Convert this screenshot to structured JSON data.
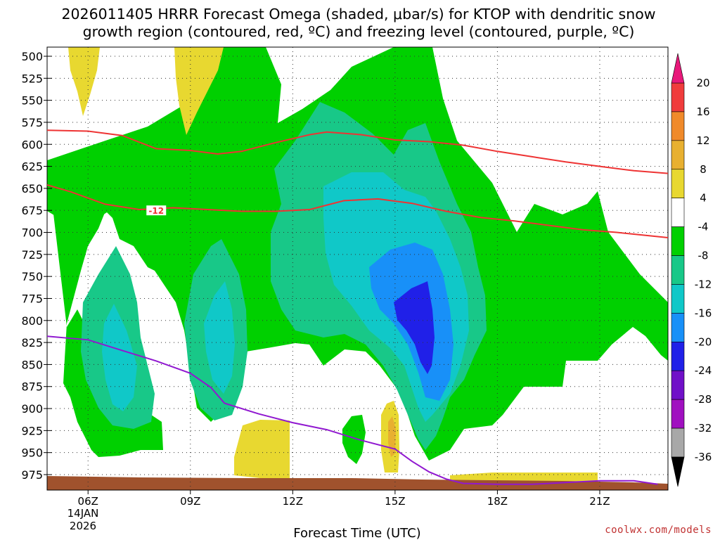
{
  "title": {
    "line1": "2026011405 HRRR Forecast Omega (shaded, μbar/s) for KTOP with dendritic snow",
    "line2": "growth region (contoured, red, ºC) and freezing level (contoured, purple, ºC)"
  },
  "credit": "coolwx.com/models",
  "chart_data": {
    "type": "filled-contour",
    "title": "2026011405 HRRR Forecast Omega (shaded, μbar/s) for KTOP with dendritic snow growth region (contoured, red, ºC) and freezing level (contoured, purple, ºC)",
    "xlabel": "Forecast Time (UTC)",
    "ylabel": "",
    "x_range_hours": [
      4.8,
      23.0
    ],
    "y_range_hpa": [
      500,
      990
    ],
    "y_inverted": true,
    "grid": true,
    "x_ticks": [
      {
        "hour": 6,
        "label": "06Z"
      },
      {
        "hour": 9,
        "label": "09Z"
      },
      {
        "hour": 12,
        "label": "12Z"
      },
      {
        "hour": 15,
        "label": "15Z"
      },
      {
        "hour": 18,
        "label": "18Z"
      },
      {
        "hour": 21,
        "label": "21Z"
      }
    ],
    "date_label": {
      "day": "14JAN",
      "year": "2026"
    },
    "y_ticks": [
      {
        "p": 500,
        "label": "500"
      },
      {
        "p": 525,
        "label": "525"
      },
      {
        "p": 550,
        "label": "550"
      },
      {
        "p": 575,
        "label": "575"
      },
      {
        "p": 600,
        "label": "600"
      },
      {
        "p": 625,
        "label": "625"
      },
      {
        "p": 650,
        "label": "650"
      },
      {
        "p": 675,
        "label": "675"
      },
      {
        "p": 700,
        "label": "700"
      },
      {
        "p": 725,
        "label": "725"
      },
      {
        "p": 750,
        "label": "750"
      },
      {
        "p": 775,
        "label": "775"
      },
      {
        "p": 800,
        "label": "800"
      },
      {
        "p": 825,
        "label": "825"
      },
      {
        "p": 850,
        "label": "850"
      },
      {
        "p": 875,
        "label": "875"
      },
      {
        "p": 900,
        "label": "900"
      },
      {
        "p": 925,
        "label": "925"
      },
      {
        "p": 950,
        "label": "950"
      },
      {
        "p": 975,
        "label": "975"
      }
    ],
    "colorbar": {
      "labels": [
        "20",
        "16",
        "12",
        "8",
        "4",
        "-4",
        "-8",
        "-12",
        "-16",
        "-20",
        "-24",
        "-28",
        "-32",
        "-36"
      ],
      "bands": [
        {
          "from": 16,
          "to": 20,
          "color": "#f03c3c"
        },
        {
          "from": 12,
          "to": 16,
          "color": "#f08a2a"
        },
        {
          "from": 8,
          "to": 12,
          "color": "#e8b030"
        },
        {
          "from": 4,
          "to": 8,
          "color": "#e8d830"
        },
        {
          "from": -4,
          "to": 4,
          "color": "#ffffff"
        },
        {
          "from": -8,
          "to": -4,
          "color": "#00d000"
        },
        {
          "from": -12,
          "to": -8,
          "color": "#18c888"
        },
        {
          "from": -16,
          "to": -12,
          "color": "#10c8c8"
        },
        {
          "from": -20,
          "to": -16,
          "color": "#1890f8"
        },
        {
          "from": -24,
          "to": -20,
          "color": "#2020e8"
        },
        {
          "from": -28,
          "to": -24,
          "color": "#7010c8"
        },
        {
          "from": -32,
          "to": -28,
          "color": "#a010c0"
        },
        {
          "from": -36,
          "to": -32,
          "color": "#a8a8a8"
        }
      ],
      "extend_top_color": "#e8187a",
      "extend_bottom_color": "#000000"
    },
    "series": [
      {
        "name": "dendritic growth region -12C",
        "color": "#ee3333",
        "label": "-12",
        "label_at": {
          "hour": 8.0,
          "p": 675
        },
        "points": [
          [
            4.8,
            646
          ],
          [
            5.5,
            654
          ],
          [
            6.5,
            668
          ],
          [
            7.5,
            674
          ],
          [
            8.5,
            672
          ],
          [
            9.5,
            674
          ],
          [
            10.5,
            676
          ],
          [
            11.5,
            676
          ],
          [
            12.5,
            674
          ],
          [
            13.5,
            664
          ],
          [
            14.5,
            662
          ],
          [
            15.5,
            667
          ],
          [
            16.5,
            676
          ],
          [
            17.5,
            683
          ],
          [
            18.5,
            687
          ],
          [
            19.5,
            692
          ],
          [
            20.5,
            697
          ],
          [
            21.5,
            700
          ],
          [
            22.5,
            704
          ],
          [
            23.0,
            706
          ]
        ]
      },
      {
        "name": "dendritic growth region upper isotherm",
        "color": "#ee3333",
        "label": "",
        "points": [
          [
            4.8,
            584
          ],
          [
            6.0,
            585
          ],
          [
            7.0,
            590
          ],
          [
            8.0,
            605
          ],
          [
            9.0,
            607
          ],
          [
            9.8,
            611
          ],
          [
            10.5,
            608
          ],
          [
            11.5,
            598
          ],
          [
            12.5,
            589
          ],
          [
            13.0,
            586
          ],
          [
            14.0,
            589
          ],
          [
            15.0,
            595
          ],
          [
            16.0,
            597
          ],
          [
            17.0,
            601
          ],
          [
            18.0,
            608
          ],
          [
            19.0,
            614
          ],
          [
            20.0,
            620
          ],
          [
            21.0,
            625
          ],
          [
            22.0,
            630
          ],
          [
            23.0,
            633
          ]
        ]
      },
      {
        "name": "freezing level 0C",
        "color": "#9018d0",
        "label": "",
        "points": [
          [
            4.8,
            818
          ],
          [
            6.0,
            822
          ],
          [
            7.0,
            834
          ],
          [
            8.0,
            846
          ],
          [
            9.0,
            860
          ],
          [
            9.6,
            876
          ],
          [
            10.0,
            894
          ],
          [
            11.0,
            906
          ],
          [
            12.0,
            916
          ],
          [
            13.0,
            924
          ],
          [
            14.0,
            936
          ],
          [
            15.0,
            946
          ],
          [
            15.5,
            960
          ],
          [
            16.0,
            972
          ],
          [
            16.5,
            980
          ],
          [
            17.0,
            985
          ],
          [
            18.0,
            986
          ],
          [
            19.0,
            986
          ],
          [
            20.0,
            984
          ],
          [
            21.0,
            982
          ],
          [
            22.0,
            982
          ],
          [
            22.7,
            986
          ]
        ]
      }
    ],
    "shaded_regions": [
      {
        "omega": -6,
        "desc": "main green region"
      },
      {
        "omega": -10,
        "desc": "teal cores"
      },
      {
        "omega": -14,
        "desc": "cyan cores"
      },
      {
        "omega": -18,
        "desc": "light blue core near 15Z"
      },
      {
        "omega": -22,
        "desc": "dark blue core 15Z-16Z ~750-820 hPa"
      },
      {
        "omega": 6,
        "desc": "yellow positive regions"
      },
      {
        "omega": 10,
        "desc": "orange streak near 15Z 925 hPa"
      }
    ]
  }
}
